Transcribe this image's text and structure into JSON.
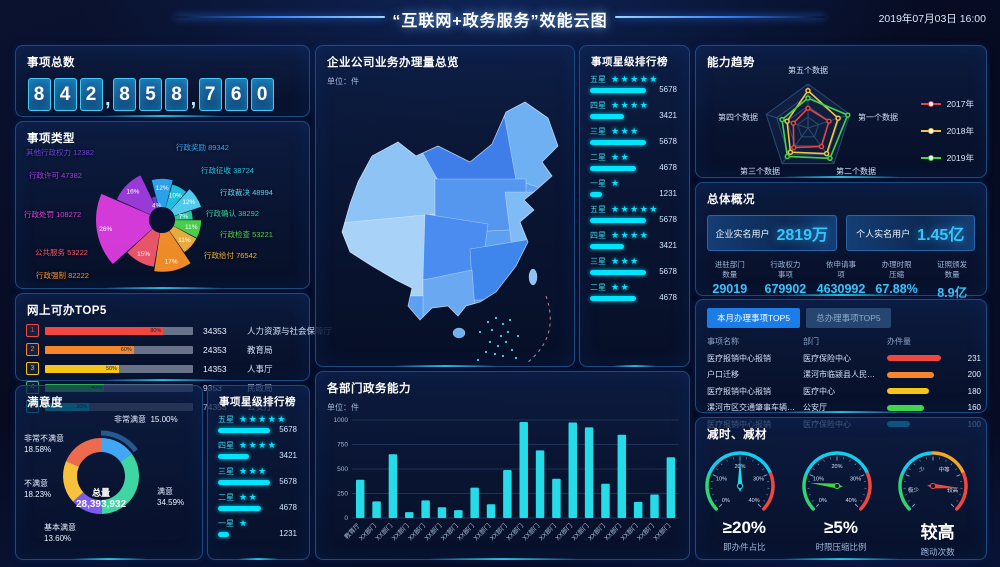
{
  "header": {
    "title": "“互联网+政务服务”效能云图",
    "datetime": "2019年07月03日  16:00"
  },
  "left": {
    "total": {
      "title": "事项总数",
      "value": "842,858,760"
    },
    "types": {
      "title": "事项类型"
    },
    "online": {
      "title": "网上可办TOP5"
    },
    "satisfaction": {
      "title": "满意度"
    },
    "star_small": {
      "title": "事项星级排行榜"
    }
  },
  "middle": {
    "map": {
      "title": "企业公司业务办理量总览",
      "unit": "单位：件"
    },
    "star_tall": {
      "title": "事项星级排行榜"
    },
    "dept": {
      "title": "各部门政务能力",
      "unit": "单位：件"
    }
  },
  "right": {
    "radar": {
      "title": "能力趋势"
    },
    "overview": {
      "title": "总体概况",
      "cards": [
        {
          "label": "企业实名用户",
          "value": "2819万"
        },
        {
          "label": "个人实名用户",
          "value": "1.45亿"
        }
      ],
      "stats": [
        {
          "l1": "进驻部门",
          "l2": "数量",
          "value": "29019"
        },
        {
          "l1": "行政权力",
          "l2": "事项",
          "value": "679902"
        },
        {
          "l1": "依申请事",
          "l2": "项",
          "value": "4630992"
        },
        {
          "l1": "办理时限",
          "l2": "压缩",
          "value": "67.88%"
        },
        {
          "l1": "证照颁发",
          "l2": "数量",
          "value": "8.9亿"
        }
      ]
    },
    "top5": {
      "tabs": [
        {
          "label": "本月办理事项TOP5",
          "active": true
        },
        {
          "label": "总办理事项TOP5",
          "active": false
        }
      ],
      "columns": [
        "事项名称",
        "部门",
        "办件量"
      ]
    },
    "reduce": {
      "title": "减时、减材"
    }
  },
  "chart_data": [
    {
      "name": "item-types",
      "type": "pie",
      "title": "事项类型",
      "slices": [
        {
          "label": "行政奖励",
          "value": 89342,
          "pct": 12,
          "color": "#2fa8f5"
        },
        {
          "label": "行政征收",
          "value": 38724,
          "pct": 10,
          "color": "#22c7e6"
        },
        {
          "label": "行政裁决",
          "value": 48994,
          "pct": 12,
          "color": "#56d4f7"
        },
        {
          "label": "行政确认",
          "value": 38292,
          "pct": 7,
          "color": "#2fd0a5"
        },
        {
          "label": "行政检查",
          "value": 53221,
          "pct": 11,
          "color": "#4ed74e"
        },
        {
          "label": "行政给付",
          "value": 76542,
          "pct": 11,
          "color": "#f2b33e"
        },
        {
          "label": "行政强制",
          "value": 82222,
          "pct": 17,
          "color": "#fb9229"
        },
        {
          "label": "公共服务",
          "value": 53222,
          "pct": 15,
          "color": "#f4586c"
        },
        {
          "label": "行政处罚",
          "value": 108272,
          "pct": 26,
          "color": "#de3ce0"
        },
        {
          "label": "行政许可",
          "value": 47382,
          "pct": 16,
          "color": "#a13ce0"
        },
        {
          "label": "其他行政权力",
          "value": 12382,
          "pct": 4,
          "color": "#6940d6"
        }
      ]
    },
    {
      "name": "online-top5",
      "type": "bar",
      "title": "网上可办TOP5",
      "rows": [
        {
          "rank": 1,
          "pct": 80,
          "value": 34353,
          "dept": "人力资源与社会保障厅",
          "color": "#f0483e"
        },
        {
          "rank": 2,
          "pct": 60,
          "value": 24353,
          "dept": "教育局",
          "color": "#f5872a"
        },
        {
          "rank": 3,
          "pct": 50,
          "value": 14353,
          "dept": "人事厅",
          "color": "#f5c518"
        },
        {
          "rank": 4,
          "pct": 40,
          "value": 9353,
          "dept": "民政局",
          "color": "#3fd64c"
        },
        {
          "rank": 5,
          "pct": 30,
          "value": 74353,
          "dept": "公安厅",
          "color": "#00e5ff"
        }
      ]
    },
    {
      "name": "satisfaction",
      "type": "pie",
      "title": "满意度",
      "center_label": "总量",
      "center_value": "28,393,932",
      "slices": [
        {
          "label": "非常满意",
          "pct": 15.0,
          "color": "#41a7f5",
          "highlight": true
        },
        {
          "label": "满意",
          "pct": 34.59,
          "color": "#3fd6a3"
        },
        {
          "label": "基本满意",
          "pct": 13.6,
          "color": "#7b5bf0"
        },
        {
          "label": "不满意",
          "pct": 18.23,
          "color": "#f7c13e"
        },
        {
          "label": "非常不满意",
          "pct": 18.58,
          "color": "#ed6a4d"
        }
      ]
    },
    {
      "name": "star-rank",
      "type": "bar",
      "title": "事项星级排行榜",
      "rows": [
        {
          "label": "五星",
          "stars": 5,
          "value": 5678
        },
        {
          "label": "四星",
          "stars": 4,
          "value": 3421
        },
        {
          "label": "三星",
          "stars": 3,
          "value": 5678
        },
        {
          "label": "二星",
          "stars": 2,
          "value": 4678
        },
        {
          "label": "一星",
          "stars": 1,
          "value": 1231
        }
      ],
      "tall_visible_rows": 9
    },
    {
      "name": "dept-capability",
      "type": "bar",
      "title": "各部门政务能力",
      "ylabel": "单位：件",
      "ylim": [
        0,
        1000
      ],
      "yticks": [
        0,
        250,
        500,
        750,
        1000
      ],
      "categories": [
        "教育厅",
        "XX部门",
        "XX部门",
        "XX部门",
        "XX部门",
        "XX部门",
        "XX部门",
        "XX部门",
        "XX部门",
        "XX部门",
        "XX部门",
        "XX部门",
        "XX部门",
        "XX部门",
        "XX部门",
        "XX部门",
        "XX部门",
        "XX部门",
        "XX部门",
        "XX部门"
      ],
      "values": [
        390,
        170,
        650,
        60,
        180,
        110,
        80,
        310,
        140,
        490,
        980,
        690,
        400,
        975,
        925,
        350,
        850,
        165,
        240,
        620
      ]
    },
    {
      "name": "capability-radar",
      "type": "radar",
      "title": "能力趋势",
      "axes": [
        "第五个数据",
        "第一个数据",
        "第二个数据",
        "第三个数据",
        "第四个数据"
      ],
      "max": 100,
      "series": [
        {
          "name": "2017年",
          "color": "#e64545",
          "values": [
            45,
            50,
            52,
            55,
            35
          ]
        },
        {
          "name": "2018年",
          "color": "#f5c542",
          "values": [
            85,
            72,
            72,
            68,
            50
          ]
        },
        {
          "name": "2019年",
          "color": "#3fd64c",
          "values": [
            68,
            95,
            85,
            80,
            62
          ]
        }
      ]
    },
    {
      "name": "top5-monthly",
      "type": "table",
      "columns": [
        "事项名称",
        "部门",
        "办件量"
      ],
      "rows": [
        {
          "name": "医疗报销中心报销",
          "dept": "医疗保险中心",
          "value": 231,
          "color": "#f0483e"
        },
        {
          "name": "户口迁移",
          "dept": "漯河市临颍县人民社保...",
          "value": 200,
          "color": "#f5872a"
        },
        {
          "name": "医疗报销中心报销",
          "dept": "医疗中心",
          "value": 180,
          "color": "#f5c518"
        },
        {
          "name": "漯河市区交通肇事车辆后续处...",
          "dept": "公安厅",
          "value": 160,
          "color": "#3fd64c"
        },
        {
          "name": "医疗报销中心报销",
          "dept": "医疗保险中心",
          "value": 100,
          "color": "#00e5ff"
        }
      ]
    },
    {
      "name": "reduce-gauges",
      "type": "gauge",
      "gauges": [
        {
          "value": "≥20%",
          "label": "即办件占比",
          "ticks": [
            "0%",
            "10%",
            "20%",
            "30%",
            "40%"
          ],
          "needle_frac": 0.5,
          "needle_color": "#17e0e8",
          "segments": [
            {
              "from": 0,
              "to": 0.25,
              "color": "#2ed573"
            },
            {
              "from": 0.25,
              "to": 0.75,
              "color": "#12cdeb"
            },
            {
              "from": 0.75,
              "to": 1,
              "color": "#f0483e"
            }
          ]
        },
        {
          "value": "≥5%",
          "label": "时限压缩比例",
          "ticks": [
            "0%",
            "10%",
            "20%",
            "30%",
            "40%"
          ],
          "needle_frac": 0.19,
          "needle_color": "#3fd64c",
          "segments": [
            {
              "from": 0,
              "to": 0.25,
              "color": "#2ed573"
            },
            {
              "from": 0.25,
              "to": 0.75,
              "color": "#12cdeb"
            },
            {
              "from": 0.75,
              "to": 1,
              "color": "#f0483e"
            }
          ]
        },
        {
          "value": "较高",
          "label": "跑动次数",
          "ticks": [
            "极少",
            "少",
            "中等",
            "较高"
          ],
          "needle_frac": 0.85,
          "needle_color": "#f0483e",
          "segments": [
            {
              "from": 0,
              "to": 0.25,
              "color": "#2ed573"
            },
            {
              "from": 0.25,
              "to": 0.5,
              "color": "#12cdeb"
            },
            {
              "from": 0.5,
              "to": 0.75,
              "color": "#f5a623"
            },
            {
              "from": 0.75,
              "to": 1,
              "color": "#f0483e"
            }
          ]
        }
      ]
    }
  ]
}
